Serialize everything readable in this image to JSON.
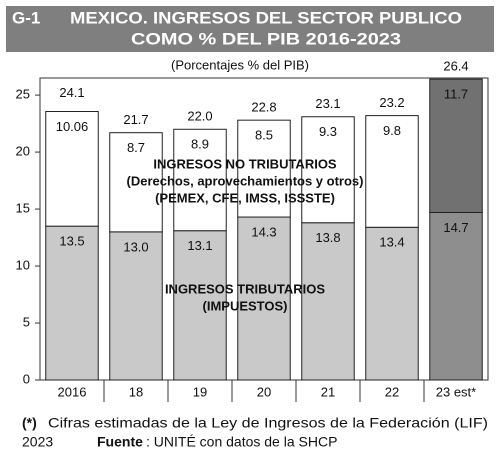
{
  "chart_data": {
    "type": "stacked_bar",
    "title_code": "G-1",
    "title": [
      "MEXICO. INGRESOS DEL SECTOR PUBLICO",
      "COMO % DEL PIB 2016-2023"
    ],
    "subtitle": "(Porcentajes % del PIB)",
    "categories": [
      "2016",
      "18",
      "19",
      "20",
      "21",
      "22",
      "23 est*"
    ],
    "series": [
      {
        "name": "INGRESOS TRIBUTARIOS",
        "notes": [
          "(IMPUESTOS)"
        ],
        "colors": [
          "#c9c9c9",
          "#c9c9c9",
          "#c9c9c9",
          "#c9c9c9",
          "#c9c9c9",
          "#c9c9c9",
          "#8e8e8e"
        ],
        "values": [
          13.5,
          13.0,
          13.1,
          14.3,
          13.8,
          13.4,
          14.7
        ],
        "value_labels": [
          "13.5",
          "13.0",
          "13.1",
          "14.3",
          "13.8",
          "13.4",
          "14.7"
        ]
      },
      {
        "name": "INGRESOS NO TRIBUTARIOS",
        "notes": [
          "(Derechos, aprovechamientos y otros)",
          "(PEMEX, CFE, IMSS, ISSSTE)"
        ],
        "colors": [
          "#ffffff",
          "#ffffff",
          "#ffffff",
          "#ffffff",
          "#ffffff",
          "#ffffff",
          "#717171"
        ],
        "values": [
          10.06,
          8.7,
          8.9,
          8.5,
          9.3,
          9.8,
          11.7
        ],
        "value_labels": [
          "10.06",
          "8.7",
          "8.9",
          "8.5",
          "9.3",
          "9.8",
          "11.7"
        ]
      }
    ],
    "totals": {
      "values": [
        24.1,
        21.7,
        22.0,
        22.8,
        23.1,
        23.2,
        26.4
      ],
      "value_labels": [
        "24.1",
        "21.7",
        "22.0",
        "22.8",
        "23.1",
        "23.2",
        "26.4"
      ]
    },
    "ylim": [
      0,
      26.5
    ],
    "yticks": [
      0,
      5,
      10,
      15,
      20,
      25
    ],
    "grid": false,
    "footnote": {
      "marker": "(*)",
      "lines": [
        "Cifras estimadas de la Ley de Ingresos de la Federación (LIF)",
        "2023"
      ]
    },
    "source": {
      "label": "Fuente",
      "text": ": UNITÉ con datos de la SHCP"
    }
  }
}
